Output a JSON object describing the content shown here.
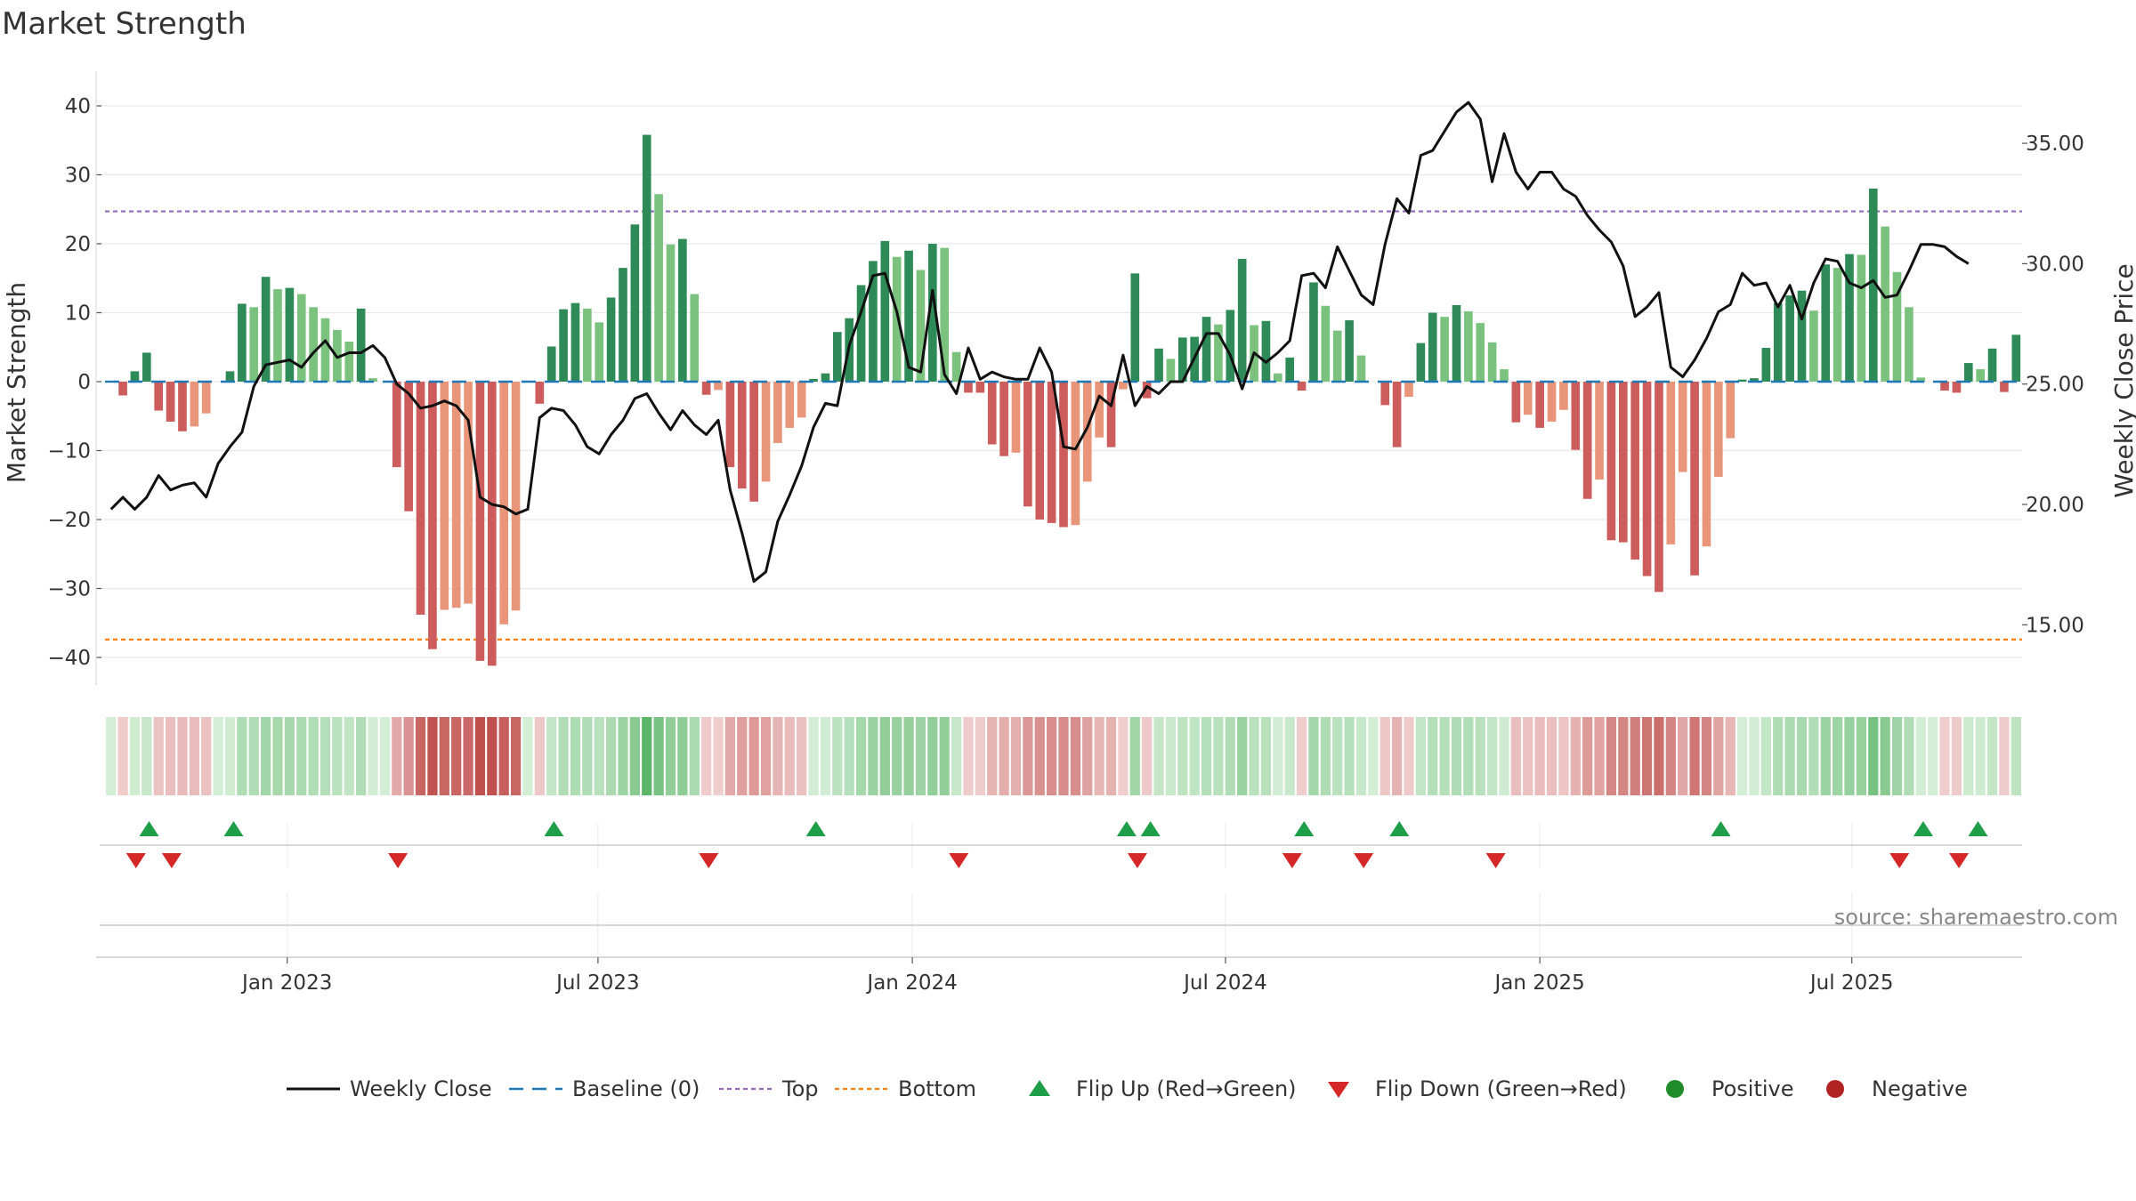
{
  "chart_data": {
    "type": "bar+line",
    "title": "Market Strength",
    "ylabel_left": "Market Strength",
    "ylabel_right": "Weekly Close Price",
    "ylim_left": [
      -44,
      44
    ],
    "ylim_right": [
      12.5,
      37.7
    ],
    "yticks_left": [
      40,
      30,
      20,
      10,
      0,
      -10,
      -20,
      -30,
      -40
    ],
    "yticks_left_labels": [
      "40",
      "30",
      "20",
      "10",
      "0",
      "−10",
      "−20",
      "−30",
      "−40"
    ],
    "yticks_right": [
      35,
      30,
      25,
      20,
      15
    ],
    "yticks_right_labels": [
      "35.00",
      "30.00",
      "25.00",
      "20.00",
      "15.00"
    ],
    "xticks": [
      {
        "label": "Jan 2023",
        "week": 14.8
      },
      {
        "label": "Jul 2023",
        "week": 40.9
      },
      {
        "label": "Jan 2024",
        "week": 67.3
      },
      {
        "label": "Jul 2024",
        "week": 93.6
      },
      {
        "label": "Jan 2025",
        "week": 120.0
      },
      {
        "label": "Jul 2025",
        "week": 146.2
      }
    ],
    "top_line": 24.7,
    "bottom_line": -37.4,
    "baseline": 0,
    "strength": [
      0,
      -2,
      1.5,
      4.2,
      -4.2,
      -5.8,
      -7.2,
      -6.5,
      -4.6,
      0,
      1.5,
      11.3,
      10.8,
      15.2,
      13.4,
      13.6,
      12.7,
      10.8,
      9.2,
      7.5,
      5.8,
      10.6,
      0.5,
      0,
      -12.4,
      -18.8,
      -33.8,
      -38.8,
      -33.1,
      -32.8,
      -32.2,
      -40.5,
      -41.2,
      -35.2,
      -33.2,
      0,
      -3.2,
      5.1,
      10.5,
      11.4,
      10.6,
      8.6,
      12.2,
      16.5,
      22.8,
      35.8,
      27.2,
      19.9,
      20.7,
      12.7,
      -1.9,
      -1.2,
      -12.4,
      -15.5,
      -17.4,
      -14.5,
      -8.9,
      -6.7,
      -5.2,
      0.4,
      1.2,
      7.2,
      9.2,
      14.0,
      17.5,
      20.4,
      18.1,
      19.0,
      16.2,
      20.0,
      19.4,
      4.3,
      -1.6,
      -1.6,
      -9.1,
      -10.8,
      -10.3,
      -18.1,
      -20.0,
      -20.5,
      -21.1,
      -20.8,
      -14.5,
      -8.1,
      -9.5,
      -1.1,
      15.7,
      -2.4,
      4.8,
      3.3,
      6.4,
      6.5,
      9.4,
      8.3,
      10.4,
      17.8,
      8.2,
      8.8,
      1.2,
      3.5,
      -1.3,
      14.4,
      11.0,
      7.4,
      8.9,
      3.8,
      0,
      -3.4,
      -9.5,
      -2.2,
      5.6,
      10.0,
      9.4,
      11.1,
      10.2,
      8.5,
      5.7,
      1.8,
      -5.9,
      -4.8,
      -6.7,
      -5.8,
      -4.1,
      -9.9,
      -17.0,
      -14.2,
      -23.0,
      -23.3,
      -25.8,
      -28.2,
      -30.5,
      -23.6,
      -13.1,
      -28.1,
      -23.9,
      -13.8,
      -8.2,
      0.3,
      0.5,
      4.9,
      11.4,
      12.5,
      13.2,
      10.3,
      17.0,
      16.5,
      18.5,
      18.4,
      28.0,
      22.5,
      15.9,
      10.8,
      0.6,
      0,
      -1.3,
      -1.6,
      2.7,
      1.8,
      4.8,
      -1.5,
      6.8
    ],
    "price": [
      19.8,
      20.3,
      19.8,
      20.3,
      21.2,
      20.6,
      20.8,
      20.9,
      20.3,
      21.7,
      22.4,
      23.0,
      24.9,
      25.8,
      25.9,
      26.0,
      25.7,
      26.3,
      26.8,
      26.1,
      26.3,
      26.3,
      26.6,
      26.1,
      25.0,
      24.6,
      24.0,
      24.1,
      24.3,
      24.1,
      23.5,
      20.3,
      20.0,
      19.9,
      19.6,
      19.8,
      23.6,
      24.0,
      23.9,
      23.3,
      22.4,
      22.1,
      22.9,
      23.5,
      24.4,
      24.6,
      23.8,
      23.1,
      23.9,
      23.3,
      22.9,
      23.5,
      20.6,
      18.8,
      16.8,
      17.2,
      19.3,
      20.4,
      21.6,
      23.2,
      24.2,
      24.1,
      26.6,
      28.0,
      29.5,
      29.6,
      28.0,
      25.7,
      25.5,
      28.9,
      25.4,
      24.6,
      26.5,
      25.2,
      25.5,
      25.3,
      25.2,
      25.2,
      26.5,
      25.5,
      22.4,
      22.3,
      23.2,
      24.5,
      24.1,
      26.2,
      24.1,
      24.9,
      24.6,
      25.1,
      25.1,
      26.1,
      27.1,
      27.1,
      26.2,
      24.8,
      26.3,
      25.9,
      26.3,
      26.8,
      29.5,
      29.6,
      29.0,
      30.7,
      29.7,
      28.7,
      28.3,
      30.8,
      32.7,
      32.1,
      34.5,
      34.7,
      35.5,
      36.3,
      36.7,
      36.0,
      33.4,
      35.4,
      33.8,
      33.1,
      33.8,
      33.8,
      33.1,
      32.8,
      32.0,
      31.4,
      30.9,
      29.9,
      27.8,
      28.2,
      28.8,
      25.7,
      25.3,
      26.0,
      26.9,
      28.0,
      28.3,
      29.6,
      29.1,
      29.2,
      28.2,
      29.1,
      27.7,
      29.2,
      30.2,
      30.1,
      29.2,
      29.0,
      29.3,
      28.6,
      28.7,
      29.7,
      30.8,
      30.8,
      30.7,
      30.3,
      30.0
    ],
    "flips_up_weeks": [
      3.2,
      10.3,
      37.2,
      59.2,
      85.3,
      87.3,
      100.2,
      108.2,
      135.2,
      152.2,
      156.8
    ],
    "flips_down_weeks": [
      2.1,
      5.1,
      24.1,
      50.2,
      71.2,
      86.2,
      99.2,
      105.2,
      116.3,
      150.2,
      155.2
    ],
    "strength_strip": "bars shaded by strength sign and magnitude",
    "legend": [
      "Weekly Close",
      "Baseline (0)",
      "Top",
      "Bottom",
      "Flip Up (Red→Green)",
      "Flip Down (Green→Red)",
      "Positive",
      "Negative"
    ],
    "legend_position": "bottom-center",
    "source": "source: sharemaestro.com"
  },
  "colors": {
    "pos_strong": "#2e8b57",
    "pos_light": "#7cc27f",
    "neg_strong": "#cd5c5c",
    "neg_light": "#e8957a",
    "close_line": "#111111",
    "baseline": "#1f77b4",
    "top": "#9467bd",
    "bottom": "#ff7f0e",
    "flip_up": "#1e9e48",
    "flip_down": "#d62728",
    "positive_dot": "#1f8b2a",
    "negative_dot": "#b22222"
  }
}
